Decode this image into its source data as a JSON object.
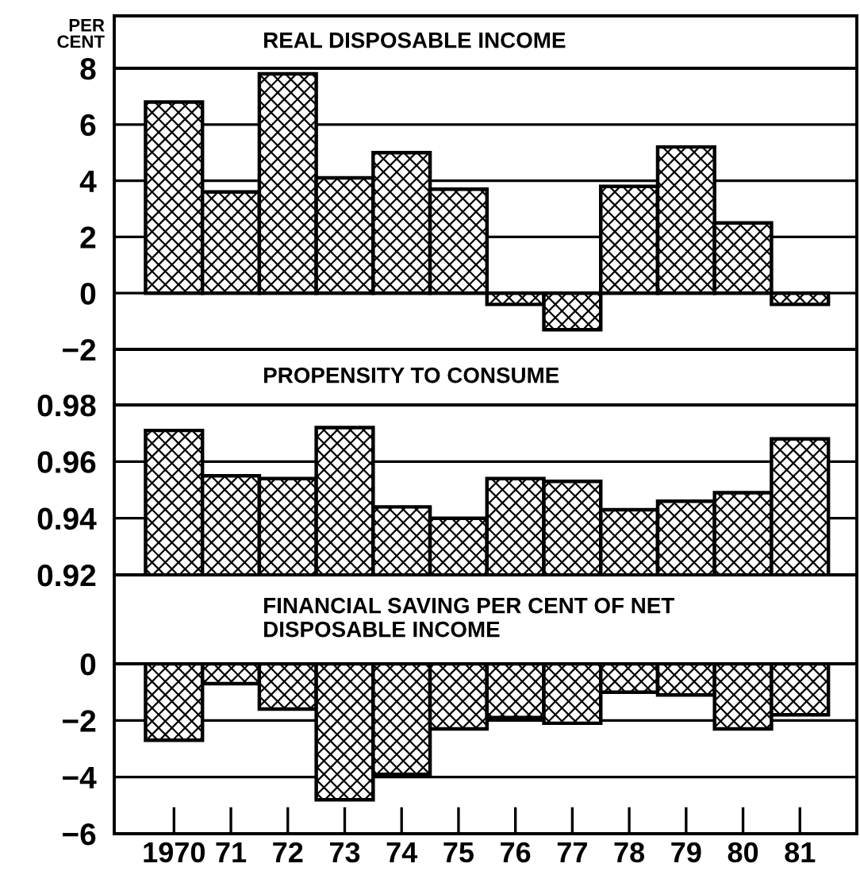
{
  "chart_data": [
    {
      "type": "bar",
      "title": "REAL DISPOSABLE INCOME",
      "ylabel": "PER CENT",
      "categories": [
        "1970",
        "71",
        "72",
        "73",
        "74",
        "75",
        "76",
        "77",
        "78",
        "79",
        "80",
        "81"
      ],
      "series": [
        {
          "color": "#000000",
          "values": [
            6.8,
            3.6,
            7.8,
            4.1,
            5.0,
            3.7,
            -0.4,
            -1.3,
            3.8,
            5.2,
            2.5,
            -0.4
          ]
        }
      ],
      "ylim": [
        -2,
        8
      ],
      "yticks": [
        {
          "value": -2,
          "label": "−2"
        },
        0,
        2,
        4,
        6,
        8
      ],
      "grid": "y",
      "tick_labels": "y"
    },
    {
      "type": "bar",
      "title": "PROPENSITY TO CONSUME",
      "categories": [
        "1970",
        "71",
        "72",
        "73",
        "74",
        "75",
        "76",
        "77",
        "78",
        "79",
        "80",
        "81"
      ],
      "series": [
        {
          "color": "#000000",
          "values": [
            0.971,
            0.955,
            0.954,
            0.972,
            0.944,
            0.94,
            0.954,
            0.953,
            0.943,
            0.946,
            0.949,
            0.968
          ]
        }
      ],
      "ylim": [
        0.92,
        0.98
      ],
      "yticks": [
        0.92,
        0.94,
        0.96,
        0.98
      ],
      "grid": "y",
      "tick_labels": "y"
    },
    {
      "type": "bar",
      "title": "FINANCIAL SAVING PER CENT OF NET\nDISPOSABLE INCOME",
      "categories": [
        "1970",
        "71",
        "72",
        "73",
        "74",
        "75",
        "76",
        "77",
        "78",
        "79",
        "80",
        "81"
      ],
      "series": [
        {
          "color": "#000000",
          "values": [
            -2.7,
            -0.7,
            -1.6,
            -4.8,
            -3.9,
            -2.3,
            -1.9,
            -2.1,
            -1.0,
            -1.1,
            -2.3,
            -1.8
          ]
        }
      ],
      "ylim": [
        -6,
        0
      ],
      "yticks": [
        {
          "value": -6,
          "label": "−6"
        },
        {
          "value": -4,
          "label": "−4"
        },
        {
          "value": -2,
          "label": "−2"
        },
        0
      ],
      "grid": "y"
    }
  ]
}
